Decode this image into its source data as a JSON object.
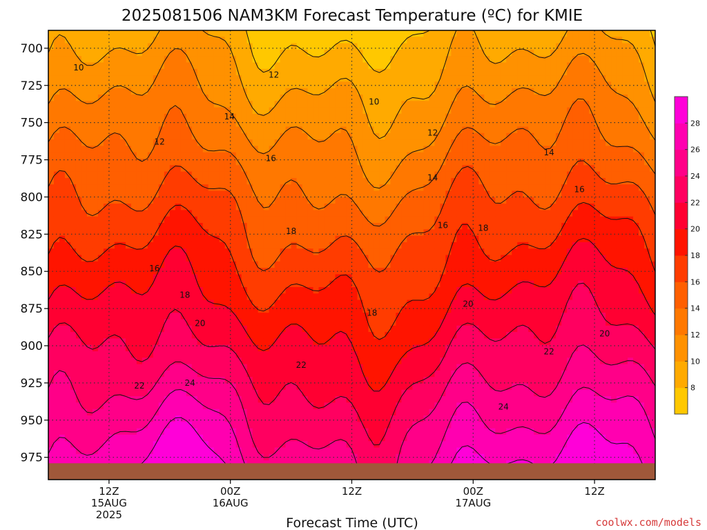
{
  "chart_data": {
    "type": "heatmap",
    "title": "2025081506 NAM3KM Forecast Temperature (ºC) for KMIE",
    "xlabel": "Forecast Time (UTC)",
    "ylabel": "",
    "y_axis": {
      "ticks": [
        "700",
        "725",
        "750",
        "775",
        "800",
        "825",
        "850",
        "875",
        "900",
        "925",
        "950",
        "975"
      ],
      "ylim": [
        688,
        990
      ],
      "units": "hPa",
      "inverted": true
    },
    "x_axis": {
      "ticks": [
        {
          "hour": 12,
          "lines": [
            "12Z",
            "15AUG",
            "2025"
          ]
        },
        {
          "hour": 24,
          "lines": [
            "00Z",
            "16AUG"
          ]
        },
        {
          "hour": 36,
          "lines": [
            "12Z"
          ]
        },
        {
          "hour": 48,
          "lines": [
            "00Z",
            "17AUG"
          ]
        },
        {
          "hour": 60,
          "lines": [
            "12Z"
          ]
        }
      ],
      "xlim": [
        6,
        66
      ],
      "units": "hours since 2025-08-15 00Z"
    },
    "grid": true,
    "contour_interval": 2,
    "contour_labels": [
      {
        "value": "10",
        "x": 9.0,
        "p": 713
      },
      {
        "value": "10",
        "x": 38.2,
        "p": 736
      },
      {
        "value": "12",
        "x": 28.3,
        "p": 718
      },
      {
        "value": "12",
        "x": 17.0,
        "p": 763
      },
      {
        "value": "12",
        "x": 44.0,
        "p": 757
      },
      {
        "value": "14",
        "x": 23.9,
        "p": 746
      },
      {
        "value": "14",
        "x": 44.0,
        "p": 787
      },
      {
        "value": "14",
        "x": 55.5,
        "p": 770
      },
      {
        "value": "16",
        "x": 28.0,
        "p": 774
      },
      {
        "value": "16",
        "x": 45.0,
        "p": 819
      },
      {
        "value": "16",
        "x": 58.5,
        "p": 795
      },
      {
        "value": "16",
        "x": 16.5,
        "p": 848
      },
      {
        "value": "18",
        "x": 30.0,
        "p": 823
      },
      {
        "value": "18",
        "x": 49.0,
        "p": 821
      },
      {
        "value": "18",
        "x": 19.5,
        "p": 866
      },
      {
        "value": "18",
        "x": 38.0,
        "p": 878
      },
      {
        "value": "20",
        "x": 21.0,
        "p": 885
      },
      {
        "value": "20",
        "x": 47.5,
        "p": 872
      },
      {
        "value": "20",
        "x": 61.0,
        "p": 892
      },
      {
        "value": "22",
        "x": 31.0,
        "p": 913
      },
      {
        "value": "22",
        "x": 15.0,
        "p": 927
      },
      {
        "value": "22",
        "x": 55.5,
        "p": 904
      },
      {
        "value": "24",
        "x": 20.0,
        "p": 925
      },
      {
        "value": "24",
        "x": 51.0,
        "p": 941
      }
    ],
    "colorbar": {
      "ticks": [
        "8",
        "10",
        "12",
        "14",
        "16",
        "18",
        "20",
        "22",
        "24",
        "26",
        "28"
      ],
      "range": [
        6,
        30
      ],
      "colors": [
        "#ffc800",
        "#ffaa00",
        "#ff9100",
        "#ff7800",
        "#ff5f00",
        "#ff3c00",
        "#ff1400",
        "#ff0032",
        "#ff0060",
        "#ff0088",
        "#ff00b0",
        "#ff00d8"
      ]
    },
    "ground_color": "#a0583a"
  },
  "credit": "coolwx.com/models"
}
